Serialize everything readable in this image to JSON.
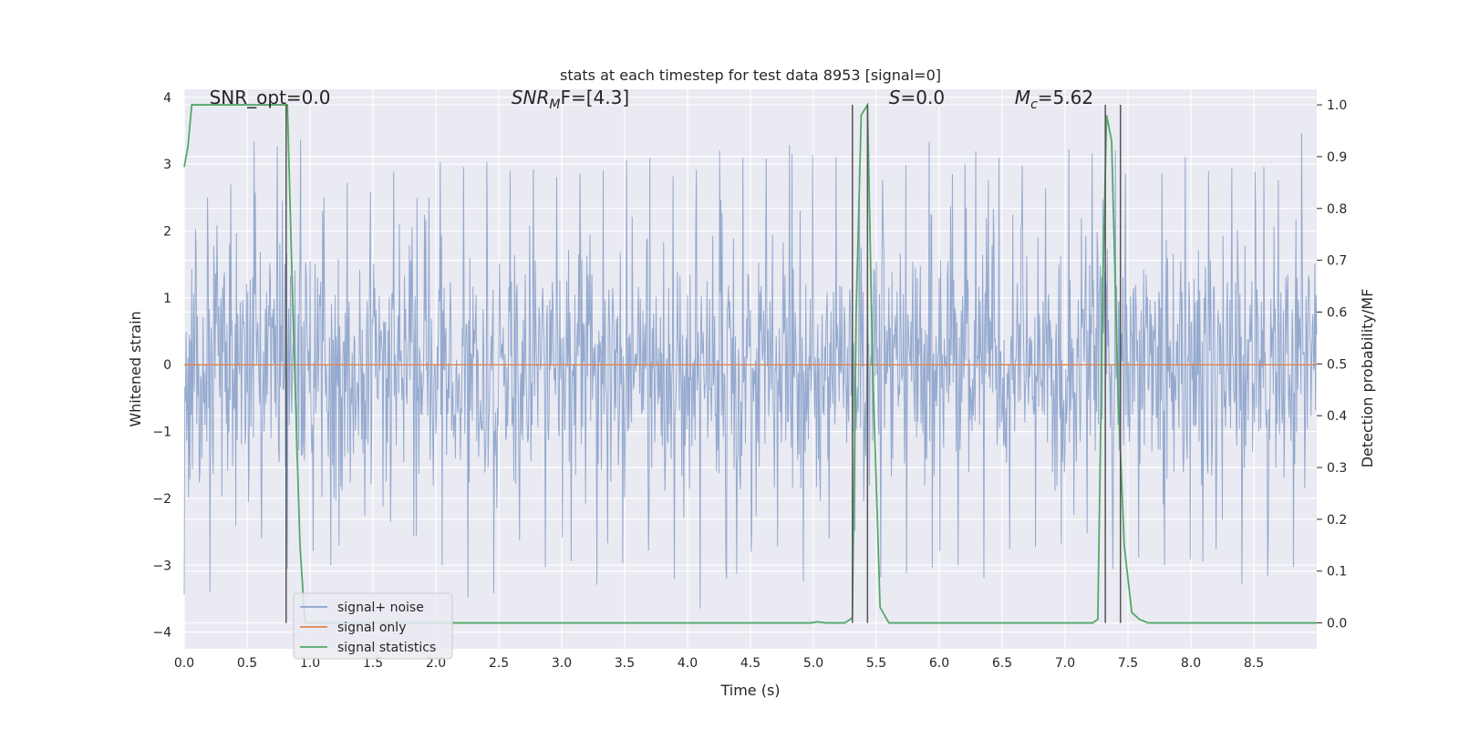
{
  "chart_data": {
    "type": "line",
    "title": "stats at each timestep for test data 8953 [signal=0]",
    "xlabel": "Time (s)",
    "ylabel_left": "Whitened strain",
    "ylabel_right": "Detection probability/MF",
    "xlim": [
      0.0,
      9.0
    ],
    "ylim_left": [
      -4.25,
      4.12
    ],
    "ylim_right": [
      -0.05,
      1.03
    ],
    "xticks": [
      "0.0",
      "0.5",
      "1.0",
      "1.5",
      "2.0",
      "2.5",
      "3.0",
      "3.5",
      "4.0",
      "4.5",
      "5.0",
      "5.5",
      "6.0",
      "6.5",
      "7.0",
      "7.5",
      "8.0",
      "8.5"
    ],
    "yticks_left": [
      "4",
      "3",
      "2",
      "1",
      "0",
      "−1",
      "−2",
      "−3",
      "−4"
    ],
    "yticks_right": [
      "1.0",
      "0.9",
      "0.8",
      "0.7",
      "0.6",
      "0.5",
      "0.4",
      "0.3",
      "0.2",
      "0.1",
      "0.0"
    ],
    "grid": true,
    "legend_position": "lower-left",
    "annotations": [
      {
        "prefix": "SNR_opt=0.0",
        "italic": "",
        "sub": "",
        "suffix": "",
        "x": 0.2
      },
      {
        "prefix": "",
        "italic": "SNR",
        "sub": "M",
        "suffix": "F=[4.3]",
        "x": 2.6
      },
      {
        "prefix": "",
        "italic": "S",
        "sub": "",
        "suffix": "=0.0",
        "x": 5.6
      },
      {
        "prefix": "",
        "italic": "M",
        "sub": "c",
        "suffix": "=5.62",
        "x": 6.6
      }
    ],
    "series": [
      {
        "name": "signal+ noise",
        "color": "#4c72b0",
        "axis": "left",
        "description": "whitened noise with amplitude roughly within ±2.5, peaks to about ±4",
        "envelope_top": [
          2.7,
          2.9,
          3.8,
          3.6,
          2.8,
          3.0,
          2.9,
          2.5,
          3.3,
          3.4,
          3.0,
          3.3,
          3.2,
          3.4,
          3.1,
          3.3,
          3.2,
          3.3,
          3.5,
          3.3,
          3.4,
          3.0,
          3.2,
          3.4,
          3.0,
          3.3,
          3.3,
          3.1,
          3.4,
          3.3,
          3.2,
          3.2,
          3.3,
          3.1,
          3.2,
          3.6
        ],
        "envelope_bottom": [
          -3.8,
          -2.5,
          -3.0,
          -3.1,
          -3.0,
          -2.5,
          -2.5,
          -2.9,
          -3.3,
          -3.5,
          -2.8,
          -3.2,
          -3.2,
          -3.3,
          -3.0,
          -3.3,
          -3.9,
          -3.2,
          -2.8,
          -3.3,
          -2.9,
          -2.8,
          -3.5,
          -3.1,
          -3.3,
          -3.2,
          -2.9,
          -3.1,
          -2.9,
          -3.3,
          -3.2,
          -3.1,
          -3.2,
          -3.3,
          -3.3,
          -3.3
        ],
        "values_legend_only": false
      },
      {
        "name": "signal only",
        "color": "#dd8452",
        "axis": "left",
        "x": [
          0.0,
          9.0
        ],
        "y": [
          0.0,
          0.0
        ]
      },
      {
        "name": "signal statistics",
        "color": "#55a868",
        "axis": "right",
        "x": [
          0.0,
          0.03,
          0.06,
          0.12,
          0.2,
          0.3,
          0.5,
          0.7,
          0.8,
          0.82,
          0.87,
          0.92,
          0.96,
          1.2,
          2.0,
          3.0,
          4.0,
          4.5,
          4.98,
          5.03,
          5.1,
          5.25,
          5.31,
          5.34,
          5.38,
          5.43,
          5.47,
          5.53,
          5.6,
          5.7,
          6.0,
          7.0,
          7.22,
          7.26,
          7.3,
          7.33,
          7.37,
          7.42,
          7.47,
          7.53,
          7.59,
          7.66,
          8.0,
          9.0
        ],
        "y": [
          0.88,
          0.92,
          1.0,
          1.0,
          1.0,
          1.0,
          1.0,
          1.0,
          1.0,
          1.0,
          0.55,
          0.15,
          0.0,
          0.0,
          0.0,
          0.0,
          0.0,
          0.0,
          0.0,
          0.002,
          0.0,
          0.0,
          0.01,
          0.6,
          0.98,
          1.0,
          0.5,
          0.03,
          0.0,
          0.0,
          0.0,
          0.0,
          0.0,
          0.007,
          0.65,
          0.98,
          0.93,
          0.45,
          0.15,
          0.02,
          0.007,
          0.0,
          0.0,
          0.0
        ]
      }
    ],
    "vertical_lines_x": [
      0.81,
      5.31,
      5.43,
      7.32,
      7.44
    ]
  },
  "colors": {
    "plot_bg": "#eaeaf2",
    "grid": "#ffffff",
    "vline": "#555555",
    "text": "#262626"
  }
}
